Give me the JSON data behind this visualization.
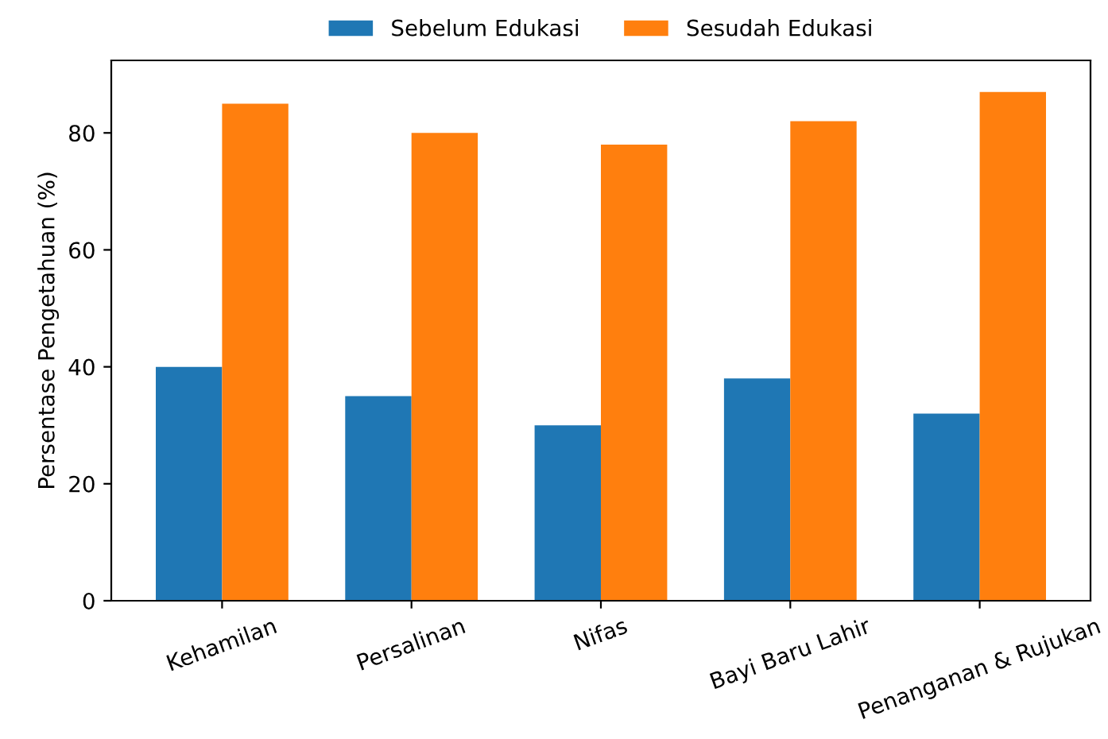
{
  "chart_data": {
    "type": "bar",
    "ylabel": "Persentase Pengetahuan (%)",
    "categories": [
      "Kehamilan",
      "Persalinan",
      "Nifas",
      "Bayi Baru Lahir",
      "Penanganan & Rujukan"
    ],
    "series": [
      {
        "name": "Sebelum Edukasi",
        "color": "#1f77b4",
        "values": [
          40,
          35,
          30,
          38,
          32
        ]
      },
      {
        "name": "Sesudah Edukasi",
        "color": "#ff7f0e",
        "values": [
          85,
          80,
          78,
          82,
          87
        ]
      }
    ],
    "ylim": [
      0,
      92.4
    ],
    "yticks": [
      0,
      20,
      40,
      60,
      80
    ],
    "legend": "top",
    "grid": false
  }
}
